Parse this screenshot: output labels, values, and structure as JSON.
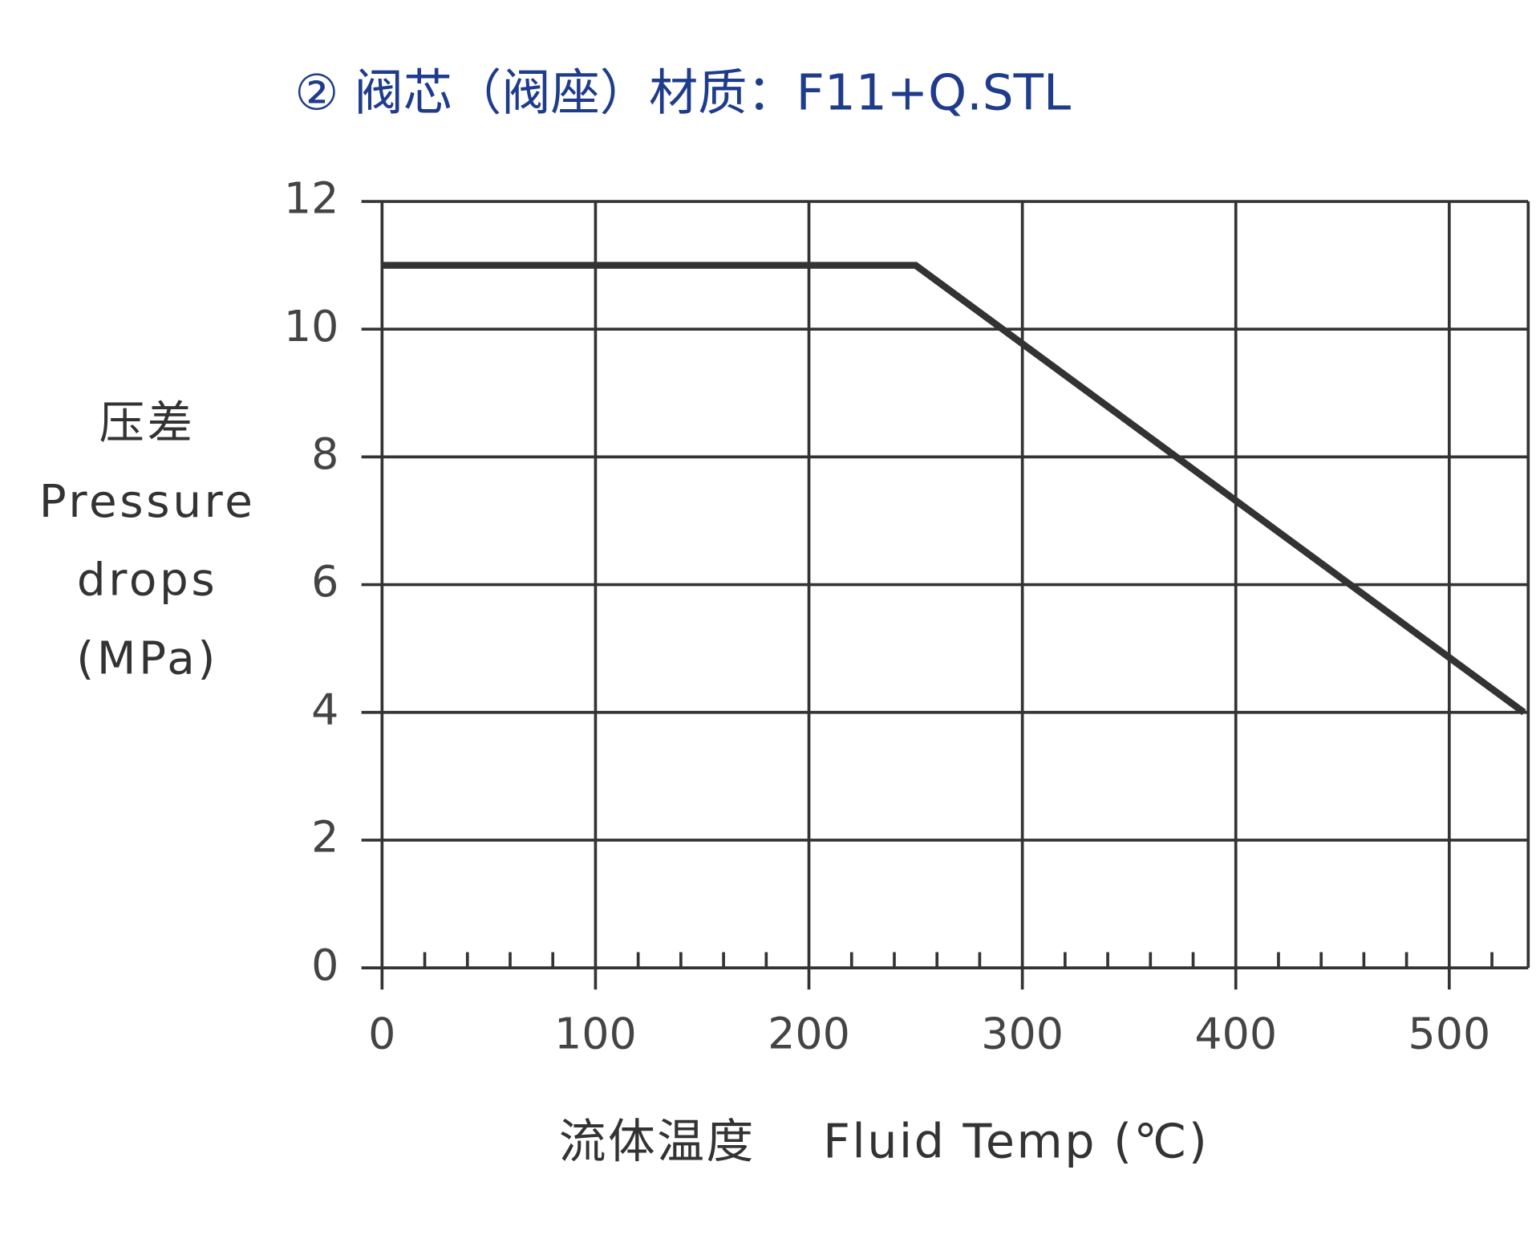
{
  "chart_data": {
    "type": "line",
    "title": "② 阀芯（阀座）材质：F11+Q.STL",
    "y_label": [
      "压差",
      "Pressure",
      "drops",
      "(MPa)"
    ],
    "x_label": "流体温度    Fluid Temp (℃)",
    "x": [
      0,
      250,
      535
    ],
    "series": [
      {
        "name": "F11+Q.STL",
        "color": "#333333",
        "values": [
          11,
          11,
          4
        ]
      }
    ],
    "xlim": [
      0,
      537
    ],
    "ylim": [
      0,
      12
    ],
    "xticks": [
      0,
      100,
      200,
      300,
      400,
      500
    ],
    "xminorticks": [
      20,
      40,
      60,
      80,
      120,
      140,
      160,
      180,
      220,
      240,
      260,
      280,
      320,
      340,
      360,
      380,
      420,
      440,
      460,
      480,
      520
    ],
    "yticks": [
      0,
      2,
      4,
      6,
      8,
      10,
      12
    ],
    "grid": true,
    "title_color": "#1f3c8c"
  }
}
